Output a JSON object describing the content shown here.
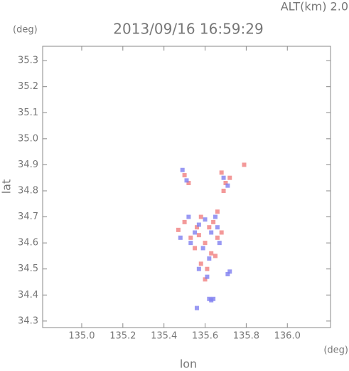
{
  "chart_data": {
    "type": "scatter",
    "title": "2013/09/16 16:59:29",
    "subtitle": "ALT(km) 2.0",
    "y_unit": "(deg)",
    "x_unit": "(deg)",
    "xlabel": "lon",
    "ylabel": "lat",
    "xlim": [
      134.81,
      136.21
    ],
    "ylim": [
      34.275,
      35.355
    ],
    "xticks": [
      {
        "value": 135,
        "label": "135.0"
      },
      135.2,
      135.4,
      135.6,
      135.8,
      {
        "value": 136,
        "label": "136.0"
      }
    ],
    "yticks": [
      34.3,
      34.4,
      34.5,
      34.6,
      34.7,
      34.8,
      {
        "value": 34.9,
        "label": "34.9"
      },
      {
        "value": 35,
        "label": "35.0"
      },
      35.1,
      35.2,
      35.3
    ],
    "series": [
      {
        "color": "#f08080",
        "x": [
          135.5,
          135.52,
          135.68,
          135.7,
          135.72,
          135.47,
          135.5,
          135.53,
          135.56,
          135.58,
          135.62,
          135.64,
          135.66,
          135.68,
          135.55,
          135.6,
          135.63,
          135.58,
          135.61,
          135.6,
          135.66,
          135.69,
          135.79,
          135.57,
          135.65
        ],
        "y": [
          34.86,
          34.83,
          34.87,
          34.83,
          34.85,
          34.65,
          34.68,
          34.62,
          34.66,
          34.7,
          34.66,
          34.68,
          34.62,
          34.64,
          34.58,
          34.6,
          34.56,
          34.52,
          34.5,
          34.46,
          34.72,
          34.8,
          34.9,
          34.63,
          34.55
        ]
      },
      {
        "color": "#8080f0",
        "x": [
          135.49,
          135.51,
          135.69,
          135.71,
          135.48,
          135.52,
          135.55,
          135.57,
          135.6,
          135.63,
          135.66,
          135.67,
          135.53,
          135.59,
          135.62,
          135.57,
          135.61,
          135.72,
          135.71,
          135.62,
          135.63,
          135.64,
          135.56,
          135.65
        ],
        "y": [
          34.88,
          34.84,
          34.85,
          34.82,
          34.62,
          34.7,
          34.64,
          34.67,
          34.69,
          34.64,
          34.66,
          34.6,
          34.6,
          34.58,
          34.54,
          34.5,
          34.47,
          34.49,
          34.48,
          34.385,
          34.38,
          34.385,
          34.35,
          34.7
        ]
      }
    ]
  }
}
